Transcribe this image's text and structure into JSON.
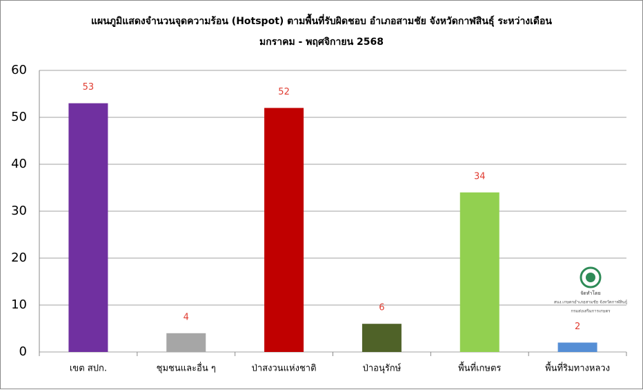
{
  "chart_data": {
    "type": "bar",
    "title": [
      "แผนภูมิแสดงจำนวนจุดความร้อน (Hotspot) ตามพื้นที่รับผิดชอบ อำเภอสามชัย จังหวัดกาฬสินธุ์ ระหว่างเดือน",
      "มกราคม - พฤศจิกายน 2568"
    ],
    "categories": [
      "เขต สปก.",
      "ชุมชนและอื่น ๆ",
      "ป่าสงวนแห่งชาติ",
      "ป่าอนุรักษ์",
      "พื้นที่เกษตร",
      "พื้นที่ริมทางหลวง"
    ],
    "values": [
      53,
      4,
      52,
      6,
      34,
      2
    ],
    "colors": [
      "#7030a0",
      "#a6a6a6",
      "#c00000",
      "#4f6228",
      "#92d050",
      "#558ed5"
    ],
    "ylim": [
      0,
      60
    ],
    "yticks": [
      0,
      10,
      20,
      30,
      40,
      50,
      60
    ],
    "grid": true,
    "watermark": [
      "จัดทำโดย",
      "สนง.เกษตรอำเภอสามชัย จังหวัดกาฬสินธุ์",
      "กรมส่งเสริมการเกษตร"
    ]
  }
}
